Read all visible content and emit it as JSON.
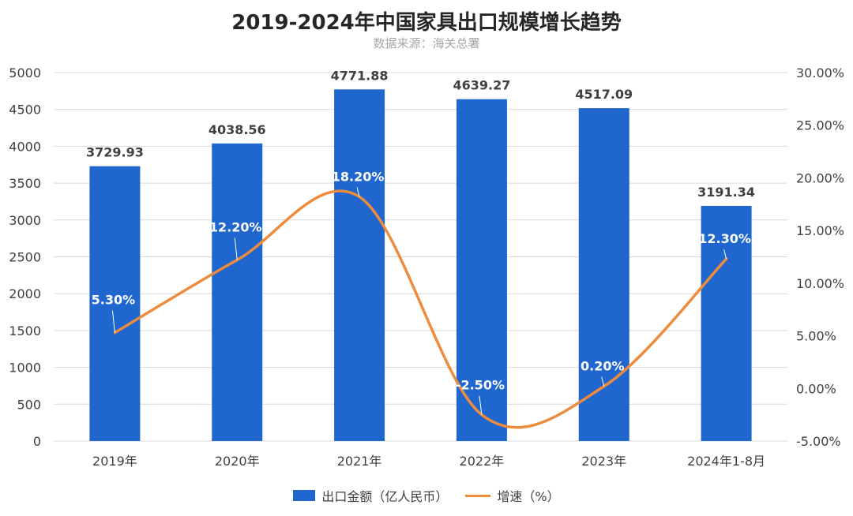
{
  "chart_data": {
    "type": "bar",
    "title": "2019-2024年中国家具出口规模增长趋势",
    "subtitle": "数据来源：海关总署",
    "categories": [
      "2019年",
      "2020年",
      "2021年",
      "2022年",
      "2023年",
      "2024年1-8月"
    ],
    "series": [
      {
        "name": "出口金额（亿人民币）",
        "type": "bar",
        "axis": "left",
        "color": "#1f66cf",
        "values": [
          3729.93,
          4038.56,
          4771.88,
          4639.27,
          4517.09,
          3191.34
        ],
        "labels": [
          "3729.93",
          "4038.56",
          "4771.88",
          "4639.27",
          "4517.09",
          "3191.34"
        ]
      },
      {
        "name": "增速（%）",
        "type": "line",
        "axis": "right",
        "color": "#ed8c3c",
        "values": [
          5.3,
          12.2,
          18.2,
          -2.5,
          0.2,
          12.3
        ],
        "labels": [
          "5.30%",
          "12.20%",
          "18.20%",
          "-2.50%",
          "0.20%",
          "12.30%"
        ]
      }
    ],
    "y_left": {
      "range": [
        0,
        5000
      ],
      "ticks": [
        "0",
        "500",
        "1000",
        "1500",
        "2000",
        "2500",
        "3000",
        "3500",
        "4000",
        "4500",
        "5000"
      ]
    },
    "y_right": {
      "range": [
        -5,
        30
      ],
      "ticks": [
        "-5.00%",
        "0.00%",
        "5.00%",
        "10.00%",
        "15.00%",
        "20.00%",
        "25.00%",
        "30.00%"
      ]
    },
    "grid": true,
    "legend": "bottom"
  }
}
